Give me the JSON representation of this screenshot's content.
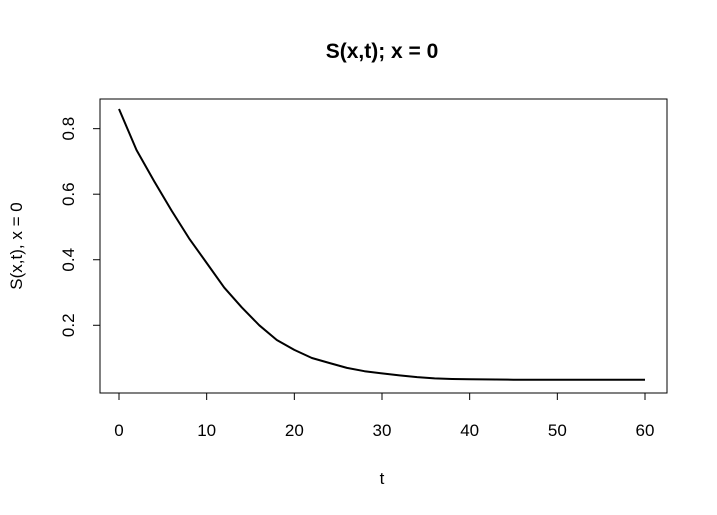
{
  "chart_data": {
    "type": "line",
    "title": "S(x,t); x = 0",
    "xlabel": "t",
    "ylabel": "S(x,t), x = 0",
    "xlim": [
      0,
      60
    ],
    "ylim": [
      0.033,
      0.86
    ],
    "xticks": [
      0,
      10,
      20,
      30,
      40,
      50,
      60
    ],
    "yticks": [
      0.2,
      0.4,
      0.6,
      0.8
    ],
    "xtick_labels": [
      "0",
      "10",
      "20",
      "30",
      "40",
      "50",
      "60"
    ],
    "ytick_labels": [
      "0.2",
      "0.4",
      "0.6",
      "0.8"
    ],
    "grid": false,
    "box": true,
    "series": [
      {
        "color": "#000000",
        "x": [
          0,
          2,
          4,
          6,
          8,
          10,
          12,
          14,
          16,
          18,
          20,
          22,
          24,
          26,
          28,
          30,
          32,
          34,
          36,
          38,
          40,
          45,
          50,
          55,
          60
        ],
        "y": [
          0.86,
          0.735,
          0.64,
          0.55,
          0.465,
          0.39,
          0.315,
          0.255,
          0.2,
          0.155,
          0.125,
          0.1,
          0.085,
          0.07,
          0.06,
          0.053,
          0.047,
          0.042,
          0.038,
          0.036,
          0.035,
          0.034,
          0.034,
          0.034,
          0.034
        ]
      }
    ]
  }
}
